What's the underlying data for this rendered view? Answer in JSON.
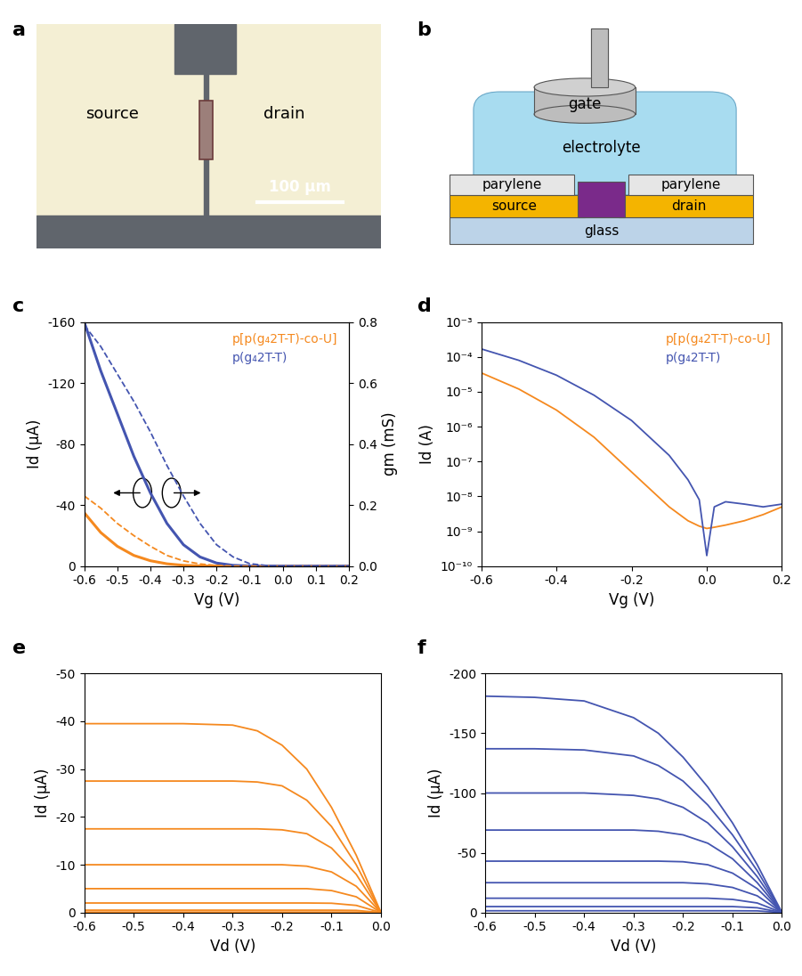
{
  "panel_labels": [
    "a",
    "b",
    "c",
    "d",
    "e",
    "f"
  ],
  "micrograph": {
    "source": "source",
    "drain": "drain",
    "scale_bar": "100 µm"
  },
  "schematic": {
    "gate": "gate",
    "electrolyte": "electrolyte",
    "parylene": "parylene",
    "source": "source",
    "drain": "drain",
    "glass": "glass"
  },
  "chart_data": [
    {
      "type": "line",
      "xlabel": "Vg (V)",
      "ylabel": "Id (µA)",
      "y2label": "gm (mS)",
      "x": [
        -0.6,
        -0.55,
        -0.5,
        -0.45,
        -0.4,
        -0.35,
        -0.3,
        -0.25,
        -0.2,
        -0.15,
        -0.1,
        -0.05,
        0,
        0.05,
        0.1,
        0.15,
        0.2
      ],
      "xlim": [
        -0.6,
        0.2
      ],
      "xticks": [
        -0.6,
        -0.5,
        -0.4,
        -0.3,
        -0.2,
        -0.1,
        {
          "value": 0,
          "label": "0.0"
        },
        0.1,
        0.2
      ],
      "ylim": [
        0,
        -160
      ],
      "yticks": [
        0,
        -40,
        -80,
        -120,
        -160
      ],
      "y2lim": [
        0,
        0.8
      ],
      "y2ticks": [
        {
          "value": 0,
          "label": "0.0"
        },
        0.2,
        0.4,
        0.6,
        0.8
      ],
      "legend": "upper right",
      "series": [
        {
          "name": "p[p(g₄2T-T)-co-U]",
          "color": "#f5891f",
          "line_style": "solid",
          "values": [
            -35,
            -22,
            -13,
            -7,
            -3.5,
            -1.5,
            -0.5,
            -0.15,
            -0.05,
            0,
            0,
            0,
            0,
            0,
            0,
            0,
            0
          ]
        },
        {
          "name": "p(g₄2T-T)",
          "color": "#4455b0",
          "line_style": "solid",
          "values": [
            -160,
            -128,
            -100,
            -72,
            -48,
            -28,
            -14,
            -6,
            -2,
            -0.5,
            -0.1,
            0,
            0,
            0,
            0,
            0,
            0
          ]
        },
        {
          "color": "#f5891f",
          "line_style": "dashed",
          "axis": "y2",
          "values": [
            0.23,
            0.19,
            0.14,
            0.1,
            0.065,
            0.035,
            0.017,
            0.007,
            0.002,
            0,
            0,
            0,
            0,
            0,
            0,
            0,
            0
          ]
        },
        {
          "color": "#4455b0",
          "line_style": "dashed",
          "axis": "y2",
          "values": [
            0.79,
            0.72,
            0.63,
            0.54,
            0.44,
            0.33,
            0.23,
            0.14,
            0.07,
            0.03,
            0.008,
            0.002,
            0,
            0,
            0,
            0,
            0
          ]
        }
      ]
    },
    {
      "type": "line",
      "xlabel": "Vg (V)",
      "ylabel": "Id (A)",
      "log": "y",
      "x": [
        -0.6,
        -0.5,
        -0.4,
        -0.3,
        -0.2,
        -0.1,
        -0.05,
        -0.02,
        0,
        0.02,
        0.05,
        0.1,
        0.15,
        0.2
      ],
      "xlim": [
        -0.6,
        0.2
      ],
      "xticks": [
        -0.6,
        -0.4,
        -0.2,
        {
          "value": 0,
          "label": "0.0"
        },
        0.2
      ],
      "ylim": [
        1e-10,
        0.001
      ],
      "yticks": [
        {
          "value": 1e-10,
          "label": "10⁻¹⁰"
        },
        {
          "value": 1e-09,
          "label": "10⁻⁹"
        },
        {
          "value": 1e-08,
          "label": "10⁻⁸"
        },
        {
          "value": 1e-07,
          "label": "10⁻⁷"
        },
        {
          "value": 1e-06,
          "label": "10⁻⁶"
        },
        {
          "value": 1e-05,
          "label": "10⁻⁵"
        },
        {
          "value": 0.0001,
          "label": "10⁻⁴"
        },
        {
          "value": 0.001,
          "label": "10⁻³"
        }
      ],
      "legend": "upper right",
      "series": [
        {
          "name": "p[p(g₄2T-T)-co-U]",
          "color": "#f5891f",
          "line_style": "solid",
          "values": [
            3.5e-05,
            1.2e-05,
            3e-06,
            5e-07,
            5e-08,
            5e-09,
            2e-09,
            1.4e-09,
            1.2e-09,
            1.3e-09,
            1.5e-09,
            2e-09,
            3e-09,
            5e-09
          ]
        },
        {
          "name": "p(g₄2T-T)",
          "color": "#4455b0",
          "line_style": "solid",
          "values": [
            0.00017,
            8e-05,
            3e-05,
            8e-06,
            1.5e-06,
            1.5e-07,
            3e-08,
            8e-09,
            2e-10,
            5e-09,
            7e-09,
            6e-09,
            5e-09,
            6e-09
          ]
        }
      ]
    },
    {
      "type": "line",
      "xlabel": "Vd (V)",
      "ylabel": "Id (µA)",
      "x": [
        0,
        -0.05,
        -0.1,
        -0.15,
        -0.2,
        -0.25,
        -0.3,
        -0.4,
        -0.5,
        -0.6
      ],
      "xlim": [
        -0.6,
        0.0
      ],
      "xticks": [
        -0.6,
        -0.5,
        -0.4,
        -0.3,
        -0.2,
        -0.1,
        {
          "value": 0,
          "label": "0.0"
        }
      ],
      "ylim": [
        0,
        -50
      ],
      "yticks": [
        0,
        -10,
        -20,
        -30,
        -40,
        -50
      ],
      "series": [
        {
          "color": "#f5891f",
          "values": [
            0,
            -12,
            -22,
            -30,
            -35,
            -38,
            -39.2,
            -39.5,
            -39.5,
            -39.5
          ]
        },
        {
          "color": "#f5891f",
          "values": [
            0,
            -10,
            -18,
            -23.5,
            -26.5,
            -27.3,
            -27.5,
            -27.5,
            -27.5,
            -27.5
          ]
        },
        {
          "color": "#f5891f",
          "values": [
            0,
            -8,
            -13.5,
            -16.5,
            -17.3,
            -17.5,
            -17.5,
            -17.5,
            -17.5,
            -17.5
          ]
        },
        {
          "color": "#f5891f",
          "values": [
            0,
            -5.5,
            -8.5,
            -9.7,
            -10,
            -10,
            -10,
            -10,
            -10,
            -10
          ]
        },
        {
          "color": "#f5891f",
          "values": [
            0,
            -3.3,
            -4.6,
            -5,
            -5,
            -5,
            -5,
            -5,
            -5,
            -5
          ]
        },
        {
          "color": "#f5891f",
          "values": [
            0,
            -1.5,
            -1.95,
            -2,
            -2,
            -2,
            -2,
            -2,
            -2,
            -2
          ]
        },
        {
          "color": "#f5891f",
          "values": [
            0,
            -0.45,
            -0.5,
            -0.5,
            -0.5,
            -0.5,
            -0.5,
            -0.5,
            -0.5,
            -0.5
          ]
        },
        {
          "color": "#f5891f",
          "values": [
            0,
            -0.1,
            -0.1,
            -0.1,
            -0.1,
            -0.1,
            -0.1,
            -0.1,
            -0.1,
            -0.1
          ]
        }
      ]
    },
    {
      "type": "line",
      "xlabel": "Vd (V)",
      "ylabel": "Id (µA)",
      "x": [
        0,
        -0.05,
        -0.1,
        -0.15,
        -0.2,
        -0.25,
        -0.3,
        -0.4,
        -0.5,
        -0.6
      ],
      "xlim": [
        -0.6,
        0.0
      ],
      "xticks": [
        -0.6,
        -0.5,
        -0.4,
        -0.3,
        -0.2,
        -0.1,
        {
          "value": 0,
          "label": "0.0"
        }
      ],
      "ylim": [
        0,
        -200
      ],
      "yticks": [
        0,
        -50,
        -100,
        -150,
        -200
      ],
      "series": [
        {
          "color": "#4455b0",
          "values": [
            0,
            -40,
            -75,
            -105,
            -130,
            -150,
            -163,
            -177,
            -180,
            -181
          ]
        },
        {
          "color": "#4455b0",
          "values": [
            0,
            -35,
            -65,
            -90,
            -110,
            -123,
            -131,
            -136,
            -137,
            -137
          ]
        },
        {
          "color": "#4455b0",
          "values": [
            0,
            -30,
            -55,
            -75,
            -88,
            -95,
            -98,
            -100,
            -100,
            -100
          ]
        },
        {
          "color": "#4455b0",
          "values": [
            0,
            -25,
            -45,
            -58,
            -65,
            -68,
            -69,
            -69,
            -69,
            -69
          ]
        },
        {
          "color": "#4455b0",
          "values": [
            0,
            -20,
            -33,
            -40,
            -42.5,
            -43,
            -43,
            -43,
            -43,
            -43
          ]
        },
        {
          "color": "#4455b0",
          "values": [
            0,
            -14,
            -21,
            -24,
            -25,
            -25,
            -25,
            -25,
            -25,
            -25
          ]
        },
        {
          "color": "#4455b0",
          "values": [
            0,
            -8,
            -11,
            -12,
            -12,
            -12,
            -12,
            -12,
            -12,
            -12
          ]
        },
        {
          "color": "#4455b0",
          "values": [
            0,
            -4,
            -5,
            -5,
            -5,
            -5,
            -5,
            -5,
            -5,
            -5
          ]
        },
        {
          "color": "#4455b0",
          "values": [
            0,
            -1.4,
            -1.5,
            -1.5,
            -1.5,
            -1.5,
            -1.5,
            -1.5,
            -1.5,
            -1.5
          ]
        }
      ]
    }
  ]
}
